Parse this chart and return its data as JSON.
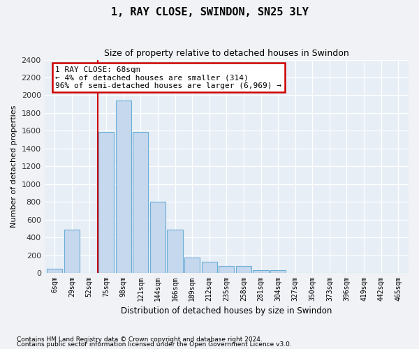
{
  "title": "1, RAY CLOSE, SWINDON, SN25 3LY",
  "subtitle": "Size of property relative to detached houses in Swindon",
  "xlabel": "Distribution of detached houses by size in Swindon",
  "ylabel": "Number of detached properties",
  "bar_color": "#c5d8ed",
  "bar_edge_color": "#6aaed6",
  "background_color": "#e8eef6",
  "grid_color": "#ffffff",
  "fig_facecolor": "#f0f2f5",
  "categories": [
    "6sqm",
    "29sqm",
    "52sqm",
    "75sqm",
    "98sqm",
    "121sqm",
    "144sqm",
    "166sqm",
    "189sqm",
    "212sqm",
    "235sqm",
    "258sqm",
    "281sqm",
    "304sqm",
    "327sqm",
    "350sqm",
    "373sqm",
    "396sqm",
    "419sqm",
    "442sqm",
    "465sqm"
  ],
  "values": [
    50,
    490,
    0,
    1590,
    1940,
    1590,
    800,
    490,
    175,
    130,
    80,
    80,
    30,
    30,
    0,
    0,
    0,
    0,
    0,
    0,
    0
  ],
  "ylim": [
    0,
    2400
  ],
  "yticks": [
    0,
    200,
    400,
    600,
    800,
    1000,
    1200,
    1400,
    1600,
    1800,
    2000,
    2200,
    2400
  ],
  "property_line_x": 2.5,
  "annotation_text": "1 RAY CLOSE: 68sqm\n← 4% of detached houses are smaller (314)\n96% of semi-detached houses are larger (6,969) →",
  "footnote1": "Contains HM Land Registry data © Crown copyright and database right 2024.",
  "footnote2": "Contains public sector information licensed under the Open Government Licence v3.0."
}
